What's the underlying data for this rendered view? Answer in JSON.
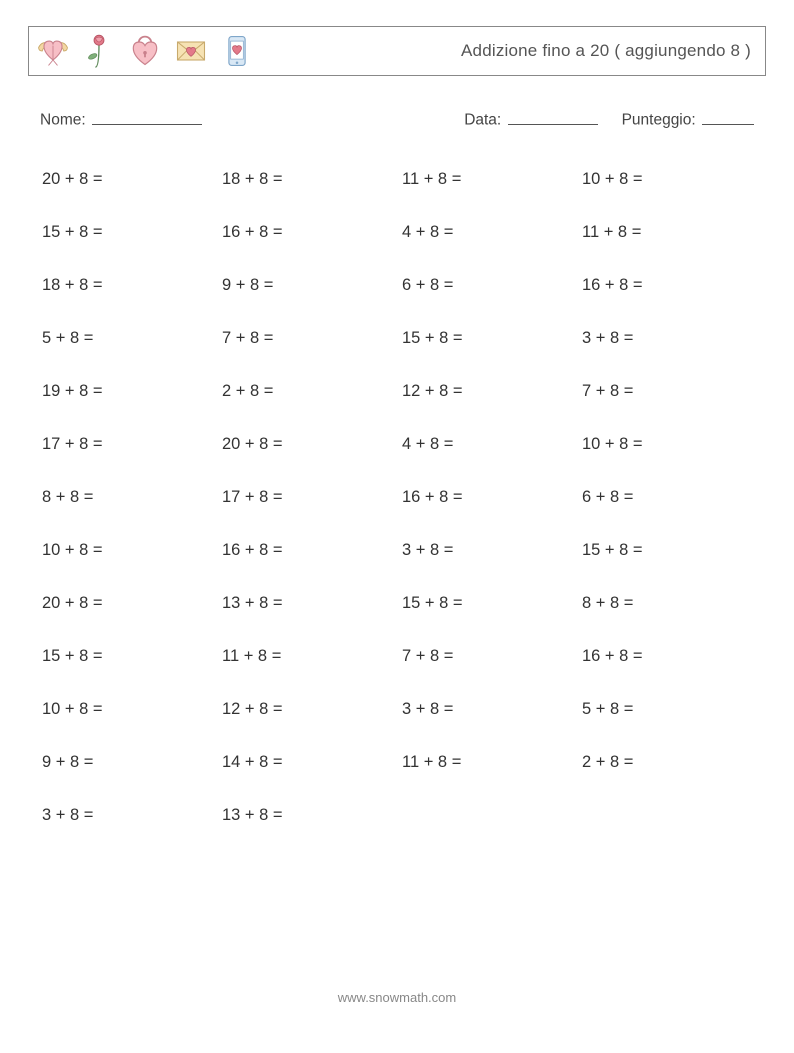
{
  "header": {
    "title": "Addizione fino a 20 ( aggiungendo 8 )",
    "border_color": "#888888",
    "text_color": "#555555"
  },
  "icons": {
    "heart_wings": {
      "fill": "#f7bfc6",
      "stroke": "#c9818c",
      "wing": "#f3d7a3",
      "wing_stroke": "#caa968"
    },
    "rose": {
      "flower": "#e37a8a",
      "stem": "#7fb07a",
      "stem_stroke": "#5f8a5a"
    },
    "lock_heart": {
      "fill": "#f7bfc6",
      "stroke": "#c9818c"
    },
    "envelope": {
      "fill": "#f6e2b3",
      "stroke": "#c8aa6c",
      "heart": "#e37a8a"
    },
    "phone": {
      "fill": "#d9e8f5",
      "stroke": "#7fa6c9",
      "heart": "#e37a8a"
    }
  },
  "meta": {
    "name_label": "Nome:",
    "date_label": "Data:",
    "score_label": "Punteggio:"
  },
  "worksheet": {
    "type": "math-problem-grid",
    "columns": 4,
    "rows": 13,
    "font_size": 16.5,
    "text_color": "#333333",
    "row_gap": 34,
    "problems": [
      [
        "20 + 8 =",
        "18 + 8 =",
        "11 + 8 =",
        "10 + 8 ="
      ],
      [
        "15 + 8 =",
        "16 + 8 =",
        "4 + 8 =",
        "11 + 8 ="
      ],
      [
        "18 + 8 =",
        "9 + 8 =",
        "6 + 8 =",
        "16 + 8 ="
      ],
      [
        "5 + 8 =",
        "7 + 8 =",
        "15 + 8 =",
        "3 + 8 ="
      ],
      [
        "19 + 8 =",
        "2 + 8 =",
        "12 + 8 =",
        "7 + 8 ="
      ],
      [
        "17 + 8 =",
        "20 + 8 =",
        "4 + 8 =",
        "10 + 8 ="
      ],
      [
        "8 + 8 =",
        "17 + 8 =",
        "16 + 8 =",
        "6 + 8 ="
      ],
      [
        "10 + 8 =",
        "16 + 8 =",
        "3 + 8 =",
        "15 + 8 ="
      ],
      [
        "20 + 8 =",
        "13 + 8 =",
        "15 + 8 =",
        "8 + 8 ="
      ],
      [
        "15 + 8 =",
        "11 + 8 =",
        "7 + 8 =",
        "16 + 8 ="
      ],
      [
        "10 + 8 =",
        "12 + 8 =",
        "3 + 8 =",
        "5 + 8 ="
      ],
      [
        "9 + 8 =",
        "14 + 8 =",
        "11 + 8 =",
        "2 + 8 ="
      ],
      [
        "3 + 8 =",
        "13 + 8 =",
        "",
        ""
      ]
    ]
  },
  "footer": {
    "text": "www.snowmath.com",
    "color": "#888888"
  }
}
